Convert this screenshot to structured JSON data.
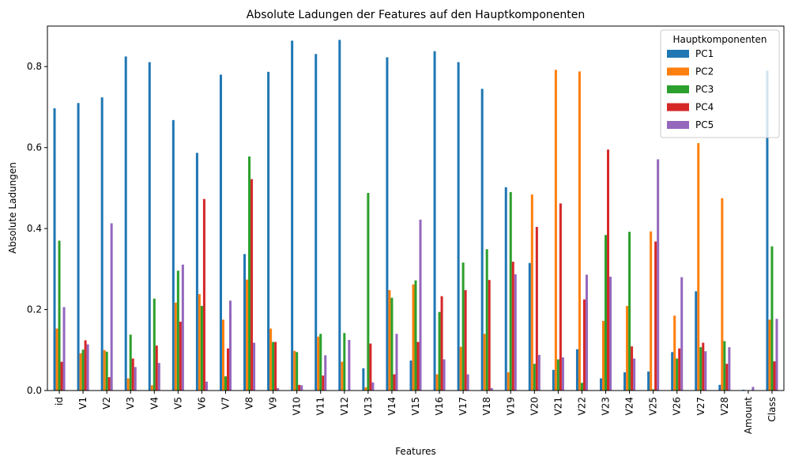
{
  "chart_data": {
    "type": "bar",
    "title": "Absolute Ladungen der Features auf den Hauptkomponenten",
    "xlabel": "Features",
    "ylabel": "Absolute Ladungen",
    "ylim": [
      0,
      0.9
    ],
    "yticks": [
      "0.0",
      "0.2",
      "0.4",
      "0.6",
      "0.8"
    ],
    "grid": false,
    "legend": {
      "title": "Hauptkomponenten",
      "placement": "top-right"
    },
    "categories": [
      "id",
      "V1",
      "V2",
      "V3",
      "V4",
      "V5",
      "V6",
      "V7",
      "V8",
      "V9",
      "V10",
      "V11",
      "V12",
      "V13",
      "V14",
      "V15",
      "V16",
      "V17",
      "V18",
      "V19",
      "V20",
      "V21",
      "V22",
      "V23",
      "V24",
      "V25",
      "V26",
      "V27",
      "V28",
      "Amount",
      "Class"
    ],
    "series": [
      {
        "name": "PC1",
        "color": "#1f77b4",
        "values": [
          0.697,
          0.71,
          0.724,
          0.825,
          0.811,
          0.668,
          0.587,
          0.78,
          0.337,
          0.787,
          0.864,
          0.831,
          0.866,
          0.055,
          0.823,
          0.074,
          0.838,
          0.811,
          0.745,
          0.502,
          0.315,
          0.051,
          0.102,
          0.03,
          0.045,
          0.047,
          0.095,
          0.245,
          0.014,
          0.002,
          0.79
        ]
      },
      {
        "name": "PC2",
        "color": "#ff7f0e",
        "values": [
          0.153,
          0.092,
          0.1,
          0.03,
          0.013,
          0.217,
          0.238,
          0.175,
          0.274,
          0.153,
          0.098,
          0.133,
          0.071,
          0.008,
          0.248,
          0.262,
          0.04,
          0.108,
          0.14,
          0.045,
          0.484,
          0.792,
          0.788,
          0.172,
          0.209,
          0.393,
          0.185,
          0.611,
          0.475,
          0.001,
          0.175
        ]
      },
      {
        "name": "PC3",
        "color": "#2ca02c",
        "values": [
          0.37,
          0.101,
          0.096,
          0.138,
          0.227,
          0.296,
          0.209,
          0.035,
          0.578,
          0.12,
          0.095,
          0.14,
          0.142,
          0.488,
          0.229,
          0.272,
          0.194,
          0.316,
          0.349,
          0.49,
          0.066,
          0.077,
          0.019,
          0.384,
          0.392,
          0.003,
          0.079,
          0.107,
          0.122,
          0.001,
          0.356
        ]
      },
      {
        "name": "PC4",
        "color": "#d62728",
        "values": [
          0.071,
          0.124,
          0.033,
          0.079,
          0.111,
          0.17,
          0.473,
          0.104,
          0.522,
          0.12,
          0.014,
          0.037,
          0.0,
          0.116,
          0.04,
          0.12,
          0.233,
          0.248,
          0.273,
          0.318,
          0.404,
          0.462,
          0.225,
          0.595,
          0.109,
          0.368,
          0.104,
          0.118,
          0.066,
          0.001,
          0.072
        ]
      },
      {
        "name": "PC5",
        "color": "#9467bd",
        "values": [
          0.206,
          0.114,
          0.413,
          0.058,
          0.068,
          0.311,
          0.022,
          0.222,
          0.118,
          0.006,
          0.013,
          0.087,
          0.125,
          0.02,
          0.14,
          0.422,
          0.077,
          0.04,
          0.006,
          0.287,
          0.088,
          0.082,
          0.286,
          0.281,
          0.079,
          0.571,
          0.28,
          0.097,
          0.107,
          0.009,
          0.177
        ]
      }
    ]
  }
}
